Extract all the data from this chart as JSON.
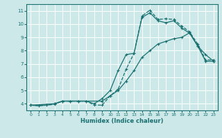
{
  "xlabel": "Humidex (Indice chaleur)",
  "bg_color": "#cce8e8",
  "grid_color": "#ffffff",
  "line_color": "#1a7070",
  "xlim": [
    -0.5,
    23.5
  ],
  "ylim": [
    3.5,
    11.5
  ],
  "xticks": [
    0,
    1,
    2,
    3,
    4,
    5,
    6,
    7,
    8,
    9,
    10,
    11,
    12,
    13,
    14,
    15,
    16,
    17,
    18,
    19,
    20,
    21,
    22,
    23
  ],
  "yticks": [
    4,
    5,
    6,
    7,
    8,
    9,
    10,
    11
  ],
  "curve_dashed_x": [
    0,
    1,
    2,
    3,
    4,
    5,
    6,
    7,
    8,
    9,
    10,
    11,
    12,
    13,
    14,
    15,
    16,
    17,
    18,
    19,
    20,
    21,
    22,
    23
  ],
  "curve_dashed_y": [
    3.9,
    3.85,
    3.9,
    3.95,
    4.2,
    4.2,
    4.2,
    4.2,
    3.9,
    3.9,
    4.6,
    5.1,
    6.6,
    7.8,
    10.6,
    11.05,
    10.35,
    10.4,
    10.35,
    9.85,
    9.4,
    8.5,
    7.3,
    7.3
  ],
  "curve_solid1_x": [
    0,
    1,
    2,
    3,
    4,
    5,
    6,
    7,
    8,
    9,
    10,
    11,
    12,
    13,
    14,
    15,
    16,
    17,
    18,
    19,
    20,
    21,
    22,
    23
  ],
  "curve_solid1_y": [
    3.9,
    3.85,
    3.9,
    4.0,
    4.2,
    4.2,
    4.2,
    4.2,
    4.0,
    4.4,
    5.0,
    6.5,
    7.7,
    7.8,
    10.5,
    10.85,
    10.25,
    10.1,
    10.25,
    9.7,
    9.3,
    8.35,
    7.2,
    7.2
  ],
  "curve_solid2_x": [
    0,
    3,
    4,
    9,
    10,
    11,
    12,
    13,
    14,
    15,
    16,
    17,
    18,
    19,
    20,
    21,
    22,
    23
  ],
  "curve_solid2_y": [
    3.9,
    4.0,
    4.2,
    4.2,
    4.6,
    5.0,
    5.7,
    6.5,
    7.5,
    8.0,
    8.5,
    8.7,
    8.9,
    9.0,
    9.35,
    8.35,
    7.7,
    7.2
  ]
}
